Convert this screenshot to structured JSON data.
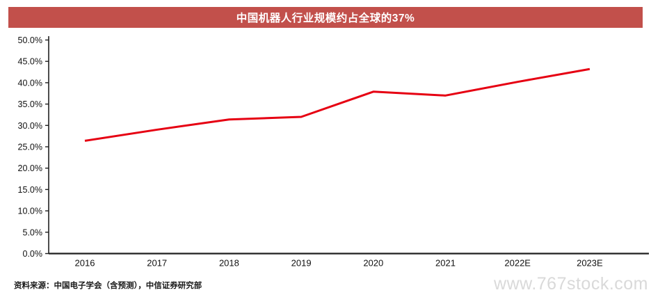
{
  "header": {
    "title": "中国机器人行业规模约占全球的37%",
    "bar_color": "#C2504B",
    "text_color": "#FFFFFF"
  },
  "chart_data": {
    "type": "line",
    "title": "中国机器人行业规模约占全球的37%",
    "categories": [
      "2016",
      "2017",
      "2018",
      "2019",
      "2020",
      "2021",
      "2022E",
      "2023E"
    ],
    "series": [
      {
        "values": [
          26.4,
          29.0,
          31.4,
          32.0,
          37.9,
          37.0,
          40.2,
          43.2
        ],
        "color": "#E60012"
      }
    ],
    "ylim": [
      0,
      50
    ],
    "y_tick_step": 5,
    "y_tick_labels": [
      "0.0%",
      "5.0%",
      "10.0%",
      "15.0%",
      "20.0%",
      "25.0%",
      "30.0%",
      "35.0%",
      "40.0%",
      "45.0%",
      "50.0%"
    ],
    "xlabel": "",
    "ylabel": "",
    "grid": false,
    "legend": "none",
    "axis_color": "#1F1F1F",
    "tick_label_color": "#111111"
  },
  "footer": {
    "source_note": "资料来源：中国电子学会（含预测），中信证券研究部",
    "watermark": "www.767stock.com"
  }
}
